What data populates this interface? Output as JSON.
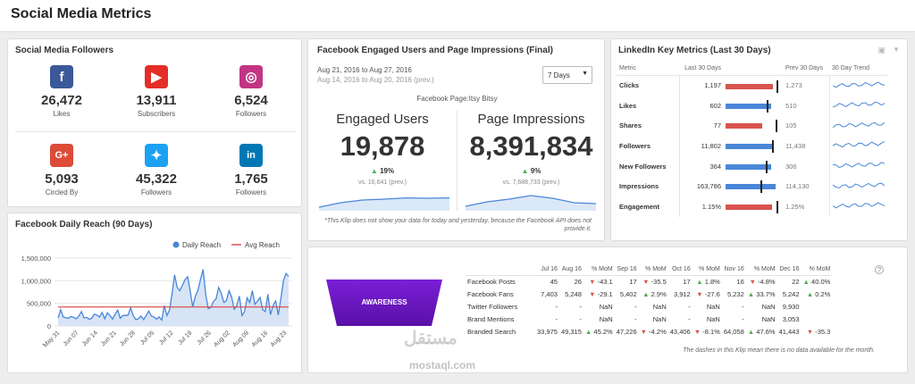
{
  "page_title": "Social Media Metrics",
  "followers": {
    "title": "Social Media Followers",
    "items": [
      {
        "icon": "facebook-icon",
        "glyph": "f",
        "color": "#3b5998",
        "value": "26,472",
        "label": "Likes"
      },
      {
        "icon": "youtube-icon",
        "glyph": "▶",
        "color": "#e52d27",
        "value": "13,911",
        "label": "Subscribers"
      },
      {
        "icon": "instagram-icon",
        "glyph": "◎",
        "color": "#c13584",
        "value": "6,524",
        "label": "Followers"
      },
      {
        "icon": "google-plus-icon",
        "glyph": "G+",
        "color": "#dd4b39",
        "value": "5,093",
        "label": "Circled By"
      },
      {
        "icon": "twitter-icon",
        "glyph": "✦",
        "color": "#1da1f2",
        "value": "45,322",
        "label": "Followers"
      },
      {
        "icon": "linkedin-icon",
        "glyph": "in",
        "color": "#0077b5",
        "value": "1,765",
        "label": "Followers"
      }
    ]
  },
  "engaged": {
    "title": "Facebook Engaged Users and Page Impressions (Final)",
    "date_range": "Aug 21, 2016 to Aug 27, 2016",
    "prev_range": "Aug 14, 2016 to Aug 20, 2016 (prev.)",
    "range_select": "7 Days",
    "page_name": "Facebook Page:Itsy Bitsy",
    "engaged_label": "Engaged Users",
    "engaged_value": "19,878",
    "engaged_delta": "19%",
    "engaged_prev": "vs. 16,641 (prev.)",
    "impressions_label": "Page Impressions",
    "impressions_value": "8,391,834",
    "impressions_delta": "9%",
    "impressions_prev": "vs. 7,688,733 (prev.)",
    "footnote_1": "*This Klip does not show your data for today and yesterday, because the Facebook API does not",
    "footnote_2": "provide it.",
    "spark_engaged": [
      0.1,
      0.35,
      0.5,
      0.55,
      0.62,
      0.6,
      0.62
    ],
    "spark_impressions": [
      0.15,
      0.4,
      0.55,
      0.75,
      0.6,
      0.35,
      0.3
    ]
  },
  "linkedin": {
    "title": "LinkedIn Key Metrics (Last 30 Days)",
    "headers": [
      "Metric",
      "Last 30 Days",
      "",
      "Prev 30 Days",
      "30 Day Trend"
    ],
    "rows": [
      {
        "metric": "Clicks",
        "last": "1,197",
        "prev": "1,273",
        "fill": 0.92,
        "mark": 0.98,
        "color": "#d9534f"
      },
      {
        "metric": "Likes",
        "last": "602",
        "prev": "510",
        "fill": 0.88,
        "mark": 0.8,
        "color": "#4a86d8"
      },
      {
        "metric": "Shares",
        "last": "77",
        "prev": "105",
        "fill": 0.7,
        "mark": 0.96,
        "color": "#d9534f"
      },
      {
        "metric": "Followers",
        "last": "11,802",
        "prev": "11,438",
        "fill": 0.93,
        "mark": 0.9,
        "color": "#4a86d8"
      },
      {
        "metric": "New Followers",
        "last": "364",
        "prev": "306",
        "fill": 0.88,
        "mark": 0.78,
        "color": "#4a86d8"
      },
      {
        "metric": "Impressions",
        "last": "163,786",
        "prev": "114,130",
        "fill": 0.96,
        "mark": 0.68,
        "color": "#4a86d8"
      },
      {
        "metric": "Engagement",
        "last": "1.15%",
        "prev": "1.25%",
        "fill": 0.9,
        "mark": 0.98,
        "color": "#d9534f"
      }
    ]
  },
  "reach": {
    "title": "Facebook Daily Reach (90 Days)",
    "legend_daily": "Daily Reach",
    "legend_avg": "Avg Reach",
    "chart_data": {
      "type": "area",
      "series": [
        {
          "name": "Daily Reach",
          "values": [
            180000,
            360000,
            200000,
            180000,
            170000,
            210000,
            190000,
            160000,
            220000,
            320000,
            180000,
            190000,
            150000,
            170000,
            260000,
            240000,
            200000,
            300000,
            160000,
            290000,
            230000,
            150000,
            260000,
            350000,
            170000,
            230000,
            230000,
            240000,
            400000,
            230000,
            140000,
            160000,
            220000,
            140000,
            230000,
            330000,
            220000,
            200000,
            150000,
            200000,
            130000,
            450000,
            230000,
            350000,
            720000,
            1130000,
            850000,
            780000,
            900000,
            1020000,
            1090000,
            780000,
            420000,
            660000,
            790000,
            1030000,
            1250000,
            700000,
            380000,
            410000,
            540000,
            600000,
            850000,
            720000,
            520000,
            560000,
            780000,
            640000,
            370000,
            450000,
            660000,
            230000,
            320000,
            620000,
            520000,
            780000,
            480000,
            550000,
            630000,
            360000,
            320000,
            700000,
            250000,
            450000,
            550000,
            240000,
            600000,
            1000000,
            1160000,
            1100000
          ]
        },
        {
          "name": "Avg Reach",
          "values": [
            420000
          ]
        }
      ],
      "x_ticks": [
        "May 31",
        "Jun 07",
        "Jun 14",
        "Jun 21",
        "Jun 28",
        "Jul 05",
        "Jul 12",
        "Jul 19",
        "Jul 26",
        "Aug 02",
        "Aug 09",
        "Aug 16",
        "Aug 23"
      ],
      "y_ticks": [
        "1,500,000",
        "1,000,000",
        "500,000",
        "0"
      ],
      "ylim": [
        0,
        1500000
      ]
    }
  },
  "awareness": {
    "label": "AWARENESS",
    "columns": [
      "Jul 16",
      "Aug 16",
      "% MoM",
      "Sep 16",
      "% MoM",
      "Oct 16",
      "% MoM",
      "Nov 16",
      "% MoM",
      "Dec 16",
      "% MoM"
    ],
    "rows": [
      {
        "name": "Facebook Posts",
        "cells": [
          "45",
          "26",
          {
            "d": "dn",
            "t": "-43.1"
          },
          "17",
          {
            "d": "dn",
            "t": "-35.5"
          },
          "17",
          {
            "d": "up",
            "t": "1.8%"
          },
          "16",
          {
            "d": "dn",
            "t": "-4.8%"
          },
          "22",
          {
            "d": "up",
            "t": "40.0%"
          }
        ]
      },
      {
        "name": "Facebook Fans",
        "cells": [
          "7,403",
          "5,248",
          {
            "d": "dn",
            "t": "-29.1"
          },
          "5,402",
          {
            "d": "up",
            "t": "2.9%"
          },
          "3,912",
          {
            "d": "dn",
            "t": "-27.6"
          },
          "5,232",
          {
            "d": "up",
            "t": "33.7%"
          },
          "5,242",
          {
            "d": "up",
            "t": "0.2%"
          }
        ]
      },
      {
        "name": "Twitter Followers",
        "cells": [
          "-",
          "-",
          "NaN",
          "-",
          "NaN",
          "-",
          "NaN",
          "-",
          "NaN",
          "9,930",
          ""
        ]
      },
      {
        "name": "Brand Mentions",
        "cells": [
          "-",
          "-",
          "NaN",
          "-",
          "NaN",
          "-",
          "NaN",
          "-",
          "NaN",
          "3,053",
          ""
        ]
      },
      {
        "name": "Branded Search",
        "cells": [
          "33,975",
          "49,315",
          {
            "d": "up",
            "t": "45.2%"
          },
          "47,226",
          {
            "d": "dn",
            "t": "-4.2%"
          },
          "43,406",
          {
            "d": "dn",
            "t": "-8.1%"
          },
          "64,058",
          {
            "d": "up",
            "t": "47.6%"
          },
          "41,443",
          {
            "d": "dn",
            "t": "-35.3"
          }
        ]
      }
    ],
    "footnote": "The dashes in this Klip mean there is no data available for the month."
  },
  "watermark": "مستقل",
  "watermark_url": "mostaql.com"
}
